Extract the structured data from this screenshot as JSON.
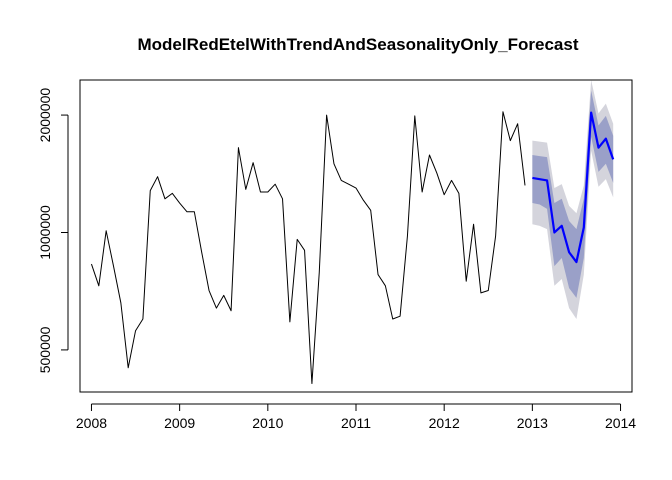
{
  "chart_data": {
    "type": "line",
    "title": "ModelRedEtelWithTrendAndSeasonalityOnly_Forecast",
    "xlabel": "",
    "ylabel": "",
    "xlim": [
      2007.87,
      2014.13
    ],
    "ylim": [
      390000,
      2460000
    ],
    "x_ticks": [
      2008,
      2009,
      2010,
      2011,
      2012,
      2013,
      2014
    ],
    "x_tick_labels": [
      "2008",
      "2009",
      "2010",
      "2011",
      "2012",
      "2013",
      "2014"
    ],
    "y_ticks": [
      500000,
      1000000,
      2000000
    ],
    "y_tick_labels": [
      "500000",
      "1000000",
      "2000000"
    ],
    "grid": false,
    "legend": "none",
    "series": [
      {
        "role": "observed",
        "color": "#000000",
        "x_start": 2008,
        "step": 0.0833333,
        "values": [
          830000,
          730000,
          1010000,
          820000,
          660000,
          450000,
          560000,
          600000,
          1280000,
          1390000,
          1220000,
          1260000,
          1190000,
          1130000,
          1130000,
          890000,
          710000,
          640000,
          690000,
          630000,
          1650000,
          1290000,
          1510000,
          1270000,
          1270000,
          1330000,
          1220000,
          590000,
          960000,
          900000,
          410000,
          790000,
          2000000,
          1500000,
          1360000,
          1330000,
          1300000,
          1210000,
          1140000,
          780000,
          730000,
          600000,
          610000,
          980000,
          1990000,
          1270000,
          1580000,
          1420000,
          1250000,
          1360000,
          1260000,
          750000,
          1050000,
          700000,
          710000,
          980000,
          2040000,
          1720000,
          1900000,
          1320000
        ]
      },
      {
        "role": "forecast-mean",
        "color": "#0000ff",
        "x_start": 2013,
        "step": 0.0833333,
        "values": [
          1380000,
          1370000,
          1360000,
          1000000,
          1040000,
          890000,
          840000,
          1030000,
          2030000,
          1650000,
          1740000,
          1540000
        ]
      },
      {
        "role": "forecast-80-interval",
        "color": "#9aa0c8",
        "x_start": 2013,
        "step": 0.0833333,
        "lower": [
          1190000,
          1180000,
          1150000,
          820000,
          860000,
          720000,
          680000,
          860000,
          1760000,
          1430000,
          1500000,
          1340000
        ],
        "upper": [
          1580000,
          1570000,
          1560000,
          1190000,
          1220000,
          1070000,
          1020000,
          1220000,
          2310000,
          1880000,
          1990000,
          1770000
        ]
      },
      {
        "role": "forecast-95-interval",
        "color": "#d4d4dc",
        "x_start": 2013,
        "step": 0.0833333,
        "lower": [
          1050000,
          1040000,
          1020000,
          730000,
          760000,
          640000,
          600000,
          780000,
          1620000,
          1310000,
          1370000,
          1230000
        ],
        "upper": [
          1720000,
          1710000,
          1700000,
          1300000,
          1330000,
          1170000,
          1120000,
          1320000,
          2460000,
          2020000,
          2140000,
          1900000
        ]
      }
    ]
  }
}
